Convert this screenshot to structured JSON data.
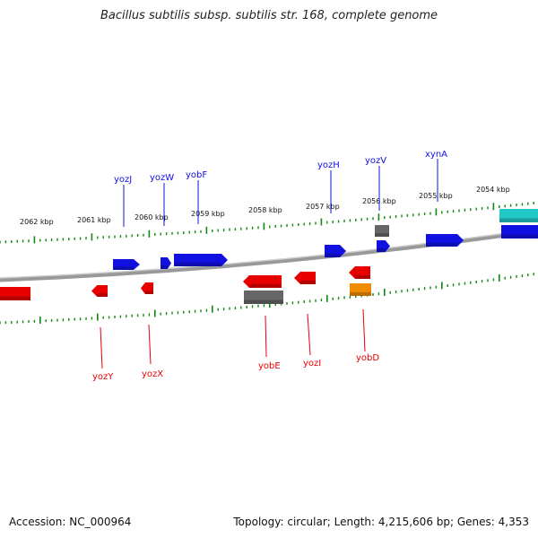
{
  "title": "Bacillus subtilis subsp. subtilis str. 168, complete genome",
  "footer": {
    "accession": "Accession: NC_000964",
    "stats": "Topology: circular; Length: 4,215,606 bp; Genes: 4,353"
  },
  "colors": {
    "forward": "#1010e0",
    "reverse": "#e80000",
    "grey": "#666666",
    "cyan": "#20c8c8",
    "orange": "#f08c00",
    "ticks": "#118811",
    "backbone": "#888888"
  },
  "kbp_labels": [
    "2062 kbp",
    "2061 kbp",
    "2060 kbp",
    "2059 kbp",
    "2058 kbp",
    "2057 kbp",
    "2056 kbp",
    "2055 kbp",
    "2054 kbp"
  ],
  "forward_gene_labels": [
    "yozJ",
    "yozW",
    "yobF",
    "yozH",
    "yozV",
    "xynA"
  ],
  "reverse_gene_labels": [
    "yozY",
    "yozX",
    "yobE",
    "yozI",
    "yobD"
  ]
}
